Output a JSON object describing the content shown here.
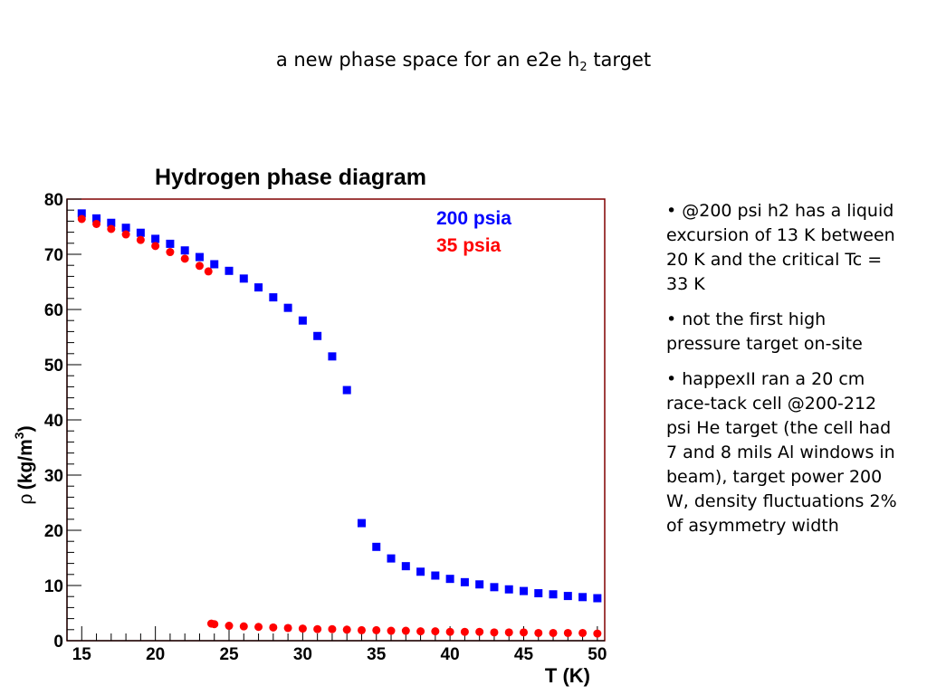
{
  "slide": {
    "title_main": "a new phase space for an e2e h",
    "title_sub": "2",
    "title_end": " target"
  },
  "bullets": [
    "• @200 psi h2 has a liquid excursion of 13 K between 20 K and the critical Tc = 33 K",
    "• not the first high pressure target on-site",
    "• happexII ran a 20 cm race-tack cell @200-212 psi He target (the cell had 7 and 8 mils Al windows in beam), target power 200 W, density fluctuations 2% of asymmetry width"
  ],
  "colors": {
    "series_200": "#0000ff",
    "series_35": "#ff0000",
    "frame": "#800000",
    "axes": "#000000"
  },
  "chart_data": {
    "type": "scatter",
    "title": "Hydrogen phase diagram",
    "xlabel": "T (K)",
    "ylabel_symbol": "ρ",
    "ylabel_text": "(kg/m",
    "ylabel_sup": "3",
    "ylabel_end": ")",
    "xlim": [
      14,
      50.5
    ],
    "ylim": [
      0,
      80
    ],
    "x_ticks": [
      15,
      20,
      25,
      30,
      35,
      40,
      45,
      50
    ],
    "y_ticks": [
      0,
      10,
      20,
      30,
      40,
      50,
      60,
      70,
      80
    ],
    "grid": false,
    "legend_position": "top-right",
    "series": [
      {
        "name": "200 psia",
        "marker": "square",
        "color": "#0000ff",
        "x": [
          15,
          16,
          17,
          18,
          19,
          20,
          21,
          22,
          23,
          24,
          25,
          26,
          27,
          28,
          29,
          30,
          31,
          32,
          33,
          34,
          35,
          36,
          37,
          38,
          39,
          40,
          41,
          42,
          43,
          44,
          45,
          46,
          47,
          48,
          49,
          50
        ],
        "y": [
          77.4,
          76.5,
          75.7,
          74.8,
          73.9,
          72.8,
          71.9,
          70.7,
          69.5,
          68.2,
          67.0,
          65.6,
          64.0,
          62.2,
          60.3,
          58.0,
          55.2,
          51.5,
          45.4,
          21.3,
          17.0,
          14.9,
          13.5,
          12.5,
          11.8,
          11.2,
          10.6,
          10.2,
          9.7,
          9.3,
          9.0,
          8.6,
          8.4,
          8.1,
          7.9,
          7.7
        ]
      },
      {
        "name": "35 psia",
        "marker": "circle",
        "color": "#ff0000",
        "x": [
          15,
          16,
          17,
          18,
          19,
          20,
          21,
          22,
          23,
          23.6,
          23.8,
          24,
          25,
          26,
          27,
          28,
          29,
          30,
          31,
          32,
          33,
          34,
          35,
          36,
          37,
          38,
          39,
          40,
          41,
          42,
          43,
          44,
          45,
          46,
          47,
          48,
          49,
          50
        ],
        "y": [
          76.4,
          75.5,
          74.6,
          73.6,
          72.6,
          71.5,
          70.4,
          69.2,
          67.9,
          66.9,
          3.1,
          3.0,
          2.7,
          2.6,
          2.5,
          2.4,
          2.3,
          2.2,
          2.1,
          2.1,
          2.0,
          1.9,
          1.9,
          1.8,
          1.8,
          1.7,
          1.7,
          1.6,
          1.6,
          1.6,
          1.5,
          1.5,
          1.5,
          1.4,
          1.4,
          1.4,
          1.4,
          1.3
        ]
      }
    ]
  }
}
